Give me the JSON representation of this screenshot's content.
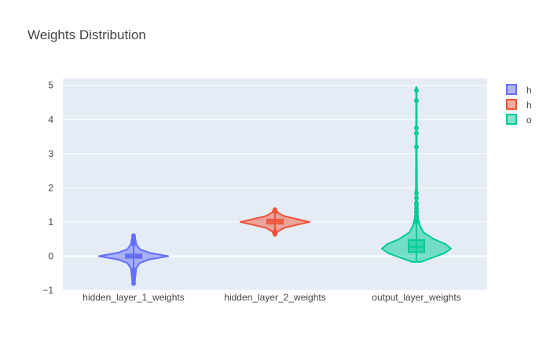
{
  "chart_data": {
    "type": "violin",
    "title": "Weights Distribution",
    "xlabel": "",
    "ylabel": "",
    "ylim": [
      -1.0,
      5.2
    ],
    "yticks": [
      -1,
      0,
      1,
      2,
      3,
      4,
      5
    ],
    "ytick_labels": [
      "−1",
      "0",
      "1",
      "2",
      "3",
      "4",
      "5"
    ],
    "grid": true,
    "legend_position": "right",
    "categories": [
      "hidden_layer_1_weights",
      "hidden_layer_2_weights",
      "output_layer_weights"
    ],
    "series": [
      {
        "name": "hidden_layer_1_weights",
        "legend_visible": "h",
        "color": "#636efa",
        "fill": "rgba(99,110,250,0.5)",
        "min": -0.82,
        "max": 0.62,
        "q1": -0.05,
        "median": 0.0,
        "q3": 0.05,
        "profile": [
          [
            -0.82,
            0.02
          ],
          [
            -0.6,
            0.05
          ],
          [
            -0.35,
            0.08
          ],
          [
            -0.2,
            0.18
          ],
          [
            -0.1,
            0.45
          ],
          [
            0.0,
            1.0
          ],
          [
            0.1,
            0.45
          ],
          [
            0.2,
            0.18
          ],
          [
            0.35,
            0.08
          ],
          [
            0.5,
            0.05
          ],
          [
            0.62,
            0.02
          ]
        ],
        "outliers": [
          -0.8,
          -0.7,
          -0.6,
          -0.5,
          -0.45,
          -0.4,
          0.35,
          0.4,
          0.45,
          0.5,
          0.55,
          0.6
        ]
      },
      {
        "name": "hidden_layer_2_weights",
        "legend_visible": "h",
        "color": "#ef553b",
        "fill": "rgba(239,85,59,0.5)",
        "min": 0.62,
        "max": 1.38,
        "q1": 0.95,
        "median": 1.01,
        "q3": 1.07,
        "profile": [
          [
            0.62,
            0.03
          ],
          [
            0.72,
            0.08
          ],
          [
            0.82,
            0.25
          ],
          [
            0.92,
            0.65
          ],
          [
            1.0,
            1.0
          ],
          [
            1.08,
            0.65
          ],
          [
            1.18,
            0.25
          ],
          [
            1.28,
            0.08
          ],
          [
            1.38,
            0.03
          ]
        ],
        "outliers": [
          0.64,
          0.68,
          0.72,
          1.3,
          1.33,
          1.36
        ]
      },
      {
        "name": "output_layer_weights",
        "legend_visible": "o",
        "color": "#00cc96",
        "fill": "rgba(0,204,150,0.5)",
        "min": -0.15,
        "max": 4.95,
        "q1": 0.12,
        "median": 0.27,
        "q3": 0.47,
        "profile": [
          [
            -0.17,
            0.12
          ],
          [
            -0.05,
            0.45
          ],
          [
            0.08,
            0.8
          ],
          [
            0.22,
            1.0
          ],
          [
            0.35,
            0.85
          ],
          [
            0.5,
            0.5
          ],
          [
            0.7,
            0.2
          ],
          [
            0.9,
            0.1
          ],
          [
            1.1,
            0.05
          ],
          [
            1.3,
            0.03
          ],
          [
            1.6,
            0.02
          ],
          [
            2.0,
            0.015
          ],
          [
            3.0,
            0.012
          ],
          [
            4.95,
            0.01
          ]
        ],
        "outliers": [
          1.0,
          1.05,
          1.1,
          1.15,
          1.2,
          1.3,
          1.4,
          1.5,
          1.55,
          1.7,
          1.85,
          3.2,
          3.6,
          3.75,
          4.55,
          4.85
        ]
      }
    ]
  }
}
